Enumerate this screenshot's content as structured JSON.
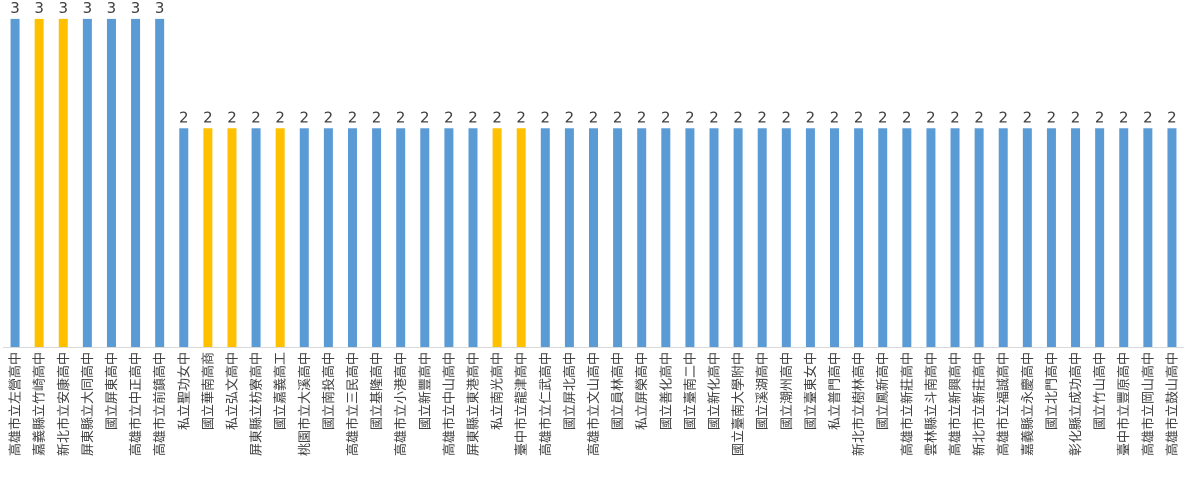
{
  "chart_data": {
    "type": "bar",
    "title": "",
    "xlabel": "",
    "ylabel": "",
    "ylim": [
      0,
      3.2
    ],
    "grid": false,
    "legend": "none",
    "colors": {
      "primary": "#5B9BD5",
      "highlight": "#FFC000",
      "axis": "#D9D9D9",
      "text": "#404040"
    },
    "categories": [
      "高雄市立左營高中",
      "嘉義縣立竹崎高中",
      "新北市立安康高中",
      "屏東縣立大同高中",
      "國立屏東高中",
      "高雄市立中正高中",
      "高雄市立前鎮高中",
      "私立聖功女中",
      "國立華南高商",
      "私立弘文高中",
      "屏東縣立枋寮高中",
      "國立嘉義高工",
      "桃園市立大溪高中",
      "國立南投高中",
      "高雄市立三民高中",
      "國立基隆高中",
      "高雄市立小港高中",
      "國立新豐高中",
      "高雄市立中山高中",
      "屏東縣立東港高中",
      "私立南光高中",
      "臺中市立龍津高中",
      "高雄市立仁武高中",
      "國立屏北高中",
      "高雄市立文山高中",
      "國立員林高中",
      "私立屏榮高中",
      "國立善化高中",
      "國立臺南二中",
      "國立新化高中",
      "國立臺南大學附中",
      "國立溪湖高中",
      "國立潮州高中",
      "國立臺東女中",
      "私立普門高中",
      "新北市立樹林高中",
      "國立鳳新高中",
      "高雄市立新莊高中",
      "雲林縣立斗南高中",
      "高雄市立新興高中",
      "新北市立新莊高中",
      "高雄市立福誠高中",
      "嘉義縣立永慶高中",
      "國立北門高中",
      "彰化縣立成功高中",
      "國立竹山高中",
      "臺中市立豐原高中",
      "高雄市立岡山高中",
      "高雄市立鼓山高中"
    ],
    "values": [
      3,
      3,
      3,
      3,
      3,
      3,
      3,
      2,
      2,
      2,
      2,
      2,
      2,
      2,
      2,
      2,
      2,
      2,
      2,
      2,
      2,
      2,
      2,
      2,
      2,
      2,
      2,
      2,
      2,
      2,
      2,
      2,
      2,
      2,
      2,
      2,
      2,
      2,
      2,
      2,
      2,
      2,
      2,
      2,
      2,
      2,
      2,
      2,
      2
    ],
    "highlighted": [
      1,
      2,
      8,
      9,
      11,
      20,
      21
    ]
  }
}
